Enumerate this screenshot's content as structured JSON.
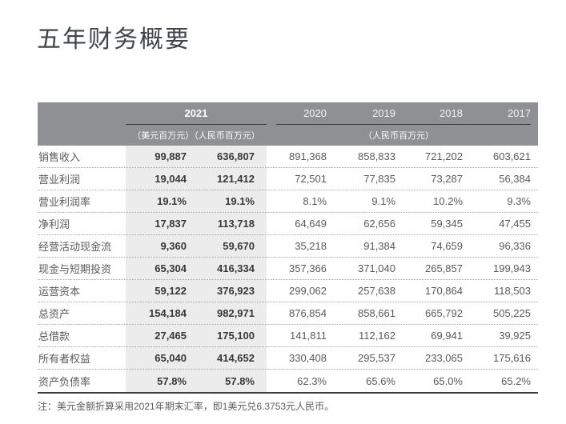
{
  "page": {
    "title": "五年财务概要",
    "footnote": "注：美元金额折算采用2021年期末汇率，即1美元兑6.3753元人民币。"
  },
  "colors": {
    "header_band": "#8e9093",
    "header_text": "#ffffff",
    "highlight_column": "#ececec",
    "body_text": "#5a5a5a",
    "bottom_border": "#3f3f3f"
  },
  "table": {
    "header": {
      "year_current": "2021",
      "unit_current_usd": "（美元百万元）",
      "unit_current_rmb": "（人民币百万元）",
      "prior_years": [
        "2020",
        "2019",
        "2018",
        "2017"
      ],
      "unit_prior": "（人民币百万元）"
    },
    "rows": [
      {
        "label": "销售收入",
        "usd": "99,887",
        "rmb": "636,807",
        "y2020": "891,368",
        "y2019": "858,833",
        "y2018": "721,202",
        "y2017": "603,621"
      },
      {
        "label": "营业利润",
        "usd": "19,044",
        "rmb": "121,412",
        "y2020": "72,501",
        "y2019": "77,835",
        "y2018": "73,287",
        "y2017": "56,384"
      },
      {
        "label": "营业利润率",
        "usd": "19.1%",
        "rmb": "19.1%",
        "y2020": "8.1%",
        "y2019": "9.1%",
        "y2018": "10.2%",
        "y2017": "9.3%"
      },
      {
        "label": "净利润",
        "usd": "17,837",
        "rmb": "113,718",
        "y2020": "64,649",
        "y2019": "62,656",
        "y2018": "59,345",
        "y2017": "47,455"
      },
      {
        "label": "经营活动现金流",
        "usd": "9,360",
        "rmb": "59,670",
        "y2020": "35,218",
        "y2019": "91,384",
        "y2018": "74,659",
        "y2017": "96,336"
      },
      {
        "label": "现金与短期投资",
        "usd": "65,304",
        "rmb": "416,334",
        "y2020": "357,366",
        "y2019": "371,040",
        "y2018": "265,857",
        "y2017": "199,943"
      },
      {
        "label": "运营资本",
        "usd": "59,122",
        "rmb": "376,923",
        "y2020": "299,062",
        "y2019": "257,638",
        "y2018": "170,864",
        "y2017": "118,503"
      },
      {
        "label": "总资产",
        "usd": "154,184",
        "rmb": "982,971",
        "y2020": "876,854",
        "y2019": "858,661",
        "y2018": "665,792",
        "y2017": "505,225"
      },
      {
        "label": "总借款",
        "usd": "27,465",
        "rmb": "175,100",
        "y2020": "141,811",
        "y2019": "112,162",
        "y2018": "69,941",
        "y2017": "39,925"
      },
      {
        "label": "所有者权益",
        "usd": "65,040",
        "rmb": "414,652",
        "y2020": "330,408",
        "y2019": "295,537",
        "y2018": "233,065",
        "y2017": "175,616"
      },
      {
        "label": "资产负债率",
        "usd": "57.8%",
        "rmb": "57.8%",
        "y2020": "62.3%",
        "y2019": "65.6%",
        "y2018": "65.0%",
        "y2017": "65.2%"
      }
    ]
  }
}
